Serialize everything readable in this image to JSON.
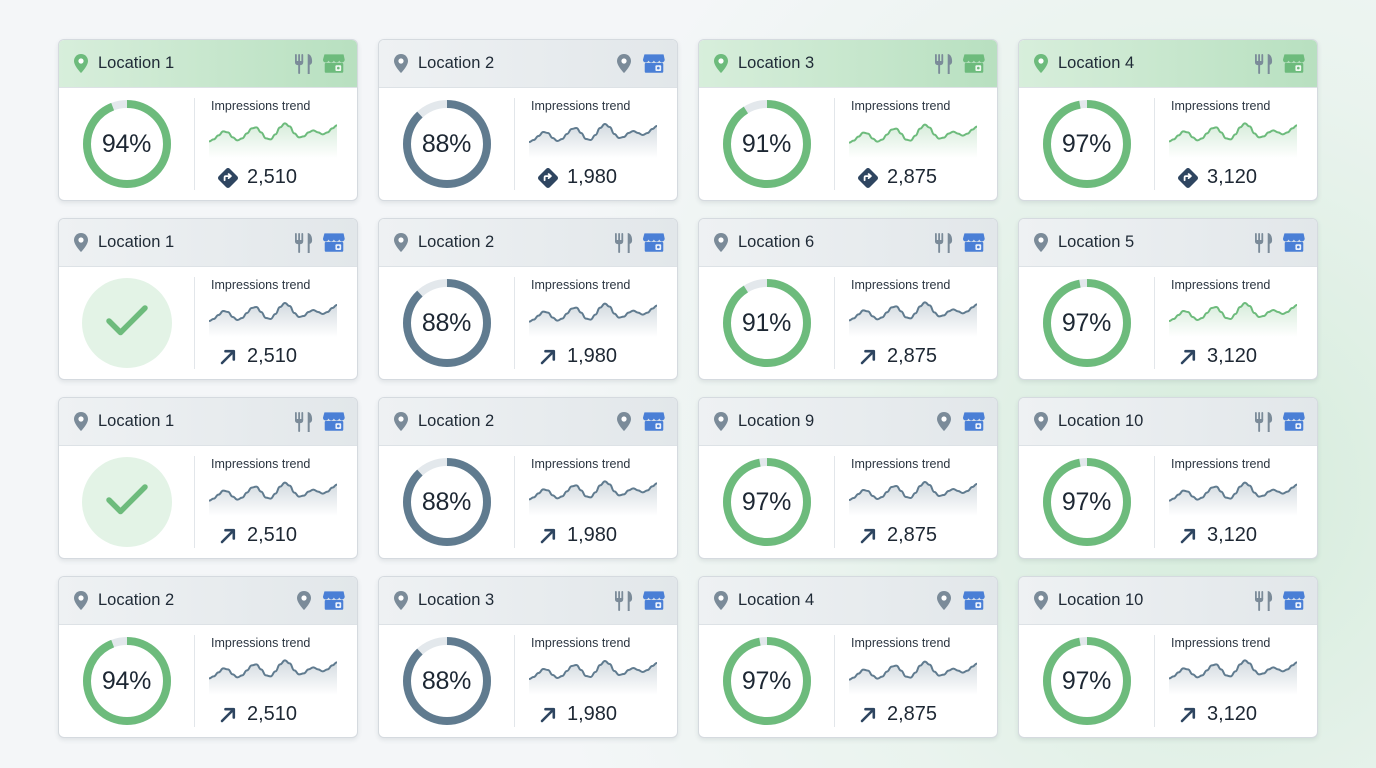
{
  "trend_label": "Impressions trend",
  "colors": {
    "green": "#6dbb7c",
    "slate": "#607b8f",
    "track": "#e3e8ec",
    "navy": "#2e4560",
    "store_blue": "#4a7fd6"
  },
  "cards": [
    {
      "name": "Location 1",
      "header": "green",
      "pin": "green",
      "icons": [
        "fork-knife-icon",
        "store-icon"
      ],
      "store": "green",
      "kind": "gauge",
      "gauge_value": 94,
      "gauge_text": "94%",
      "gauge_color": "green",
      "spark_color": "green",
      "stat_icon": "direction-icon",
      "stat_value": "2,510"
    },
    {
      "name": "Location 2",
      "header": "gray",
      "pin": "gray",
      "icons": [
        "map-pin-icon",
        "store-icon"
      ],
      "store": "blue",
      "kind": "gauge",
      "gauge_value": 88,
      "gauge_text": "88%",
      "gauge_color": "slate",
      "spark_color": "slate",
      "stat_icon": "direction-icon",
      "stat_value": "1,980"
    },
    {
      "name": "Location 3",
      "header": "green",
      "pin": "green",
      "icons": [
        "fork-knife-icon",
        "store-icon"
      ],
      "store": "green",
      "kind": "gauge",
      "gauge_value": 91,
      "gauge_text": "91%",
      "gauge_color": "green",
      "spark_color": "green",
      "stat_icon": "direction-icon",
      "stat_value": "2,875"
    },
    {
      "name": "Location 4",
      "header": "green",
      "pin": "green",
      "icons": [
        "fork-knife-icon",
        "store-icon"
      ],
      "store": "green",
      "kind": "gauge",
      "gauge_value": 97,
      "gauge_text": "97%",
      "gauge_color": "green",
      "spark_color": "green",
      "stat_icon": "direction-icon",
      "stat_value": "3,120"
    },
    {
      "name": "Location 1",
      "header": "gray",
      "pin": "gray",
      "icons": [
        "fork-knife-icon",
        "store-icon"
      ],
      "store": "blue",
      "kind": "check",
      "spark_color": "slate",
      "stat_icon": "arrow-up-right-icon",
      "stat_value": "2,510"
    },
    {
      "name": "Location 2",
      "header": "gray",
      "pin": "gray",
      "icons": [
        "fork-knife-icon",
        "store-icon"
      ],
      "store": "blue",
      "kind": "gauge",
      "gauge_value": 88,
      "gauge_text": "88%",
      "gauge_color": "slate",
      "spark_color": "slate",
      "stat_icon": "arrow-up-right-icon",
      "stat_value": "1,980"
    },
    {
      "name": "Location 6",
      "header": "gray",
      "pin": "gray",
      "icons": [
        "fork-knife-icon",
        "store-icon"
      ],
      "store": "blue",
      "kind": "gauge",
      "gauge_value": 91,
      "gauge_text": "91%",
      "gauge_color": "green",
      "spark_color": "slate",
      "stat_icon": "arrow-up-right-icon",
      "stat_value": "2,875"
    },
    {
      "name": "Location 5",
      "header": "gray",
      "pin": "gray",
      "icons": [
        "fork-knife-icon",
        "store-icon"
      ],
      "store": "blue",
      "kind": "gauge",
      "gauge_value": 97,
      "gauge_text": "97%",
      "gauge_color": "green",
      "spark_color": "green",
      "stat_icon": "arrow-up-right-icon",
      "stat_value": "3,120"
    },
    {
      "name": "Location 1",
      "header": "gray",
      "pin": "gray",
      "icons": [
        "fork-knife-icon",
        "store-icon"
      ],
      "store": "blue",
      "kind": "check",
      "spark_color": "slate",
      "stat_icon": "arrow-up-right-icon",
      "stat_value": "2,510"
    },
    {
      "name": "Location 2",
      "header": "gray",
      "pin": "gray",
      "icons": [
        "map-pin-icon",
        "store-icon"
      ],
      "store": "blue",
      "kind": "gauge",
      "gauge_value": 88,
      "gauge_text": "88%",
      "gauge_color": "slate",
      "spark_color": "slate",
      "stat_icon": "arrow-up-right-icon",
      "stat_value": "1,980"
    },
    {
      "name": "Location 9",
      "header": "gray",
      "pin": "gray",
      "icons": [
        "map-pin-icon",
        "store-icon"
      ],
      "store": "blue",
      "kind": "gauge",
      "gauge_value": 97,
      "gauge_text": "97%",
      "gauge_color": "green",
      "spark_color": "slate",
      "stat_icon": "arrow-up-right-icon",
      "stat_value": "2,875"
    },
    {
      "name": "Location 10",
      "header": "gray",
      "pin": "gray",
      "icons": [
        "fork-knife-icon",
        "store-icon"
      ],
      "store": "blue",
      "kind": "gauge",
      "gauge_value": 97,
      "gauge_text": "97%",
      "gauge_color": "green",
      "spark_color": "slate",
      "stat_icon": "arrow-up-right-icon",
      "stat_value": "3,120"
    },
    {
      "name": "Location 2",
      "header": "gray",
      "pin": "gray",
      "icons": [
        "map-pin-icon",
        "store-icon"
      ],
      "store": "blue",
      "kind": "gauge",
      "gauge_value": 94,
      "gauge_text": "94%",
      "gauge_color": "green",
      "spark_color": "slate",
      "stat_icon": "arrow-up-right-icon",
      "stat_value": "2,510"
    },
    {
      "name": "Location 3",
      "header": "gray",
      "pin": "gray",
      "icons": [
        "fork-knife-icon",
        "store-icon"
      ],
      "store": "blue",
      "kind": "gauge",
      "gauge_value": 88,
      "gauge_text": "88%",
      "gauge_color": "slate",
      "spark_color": "slate",
      "stat_icon": "arrow-up-right-icon",
      "stat_value": "1,980"
    },
    {
      "name": "Location 4",
      "header": "gray",
      "pin": "gray",
      "icons": [
        "map-pin-icon",
        "store-icon"
      ],
      "store": "blue",
      "kind": "gauge",
      "gauge_value": 97,
      "gauge_text": "97%",
      "gauge_color": "green",
      "spark_color": "slate",
      "stat_icon": "arrow-up-right-icon",
      "stat_value": "2,875"
    },
    {
      "name": "Location 10",
      "header": "gray",
      "pin": "gray",
      "icons": [
        "fork-knife-icon",
        "store-icon"
      ],
      "store": "blue",
      "kind": "gauge",
      "gauge_value": 97,
      "gauge_text": "97%",
      "gauge_color": "green",
      "spark_color": "slate",
      "stat_icon": "arrow-up-right-icon",
      "stat_value": "3,120"
    }
  ]
}
